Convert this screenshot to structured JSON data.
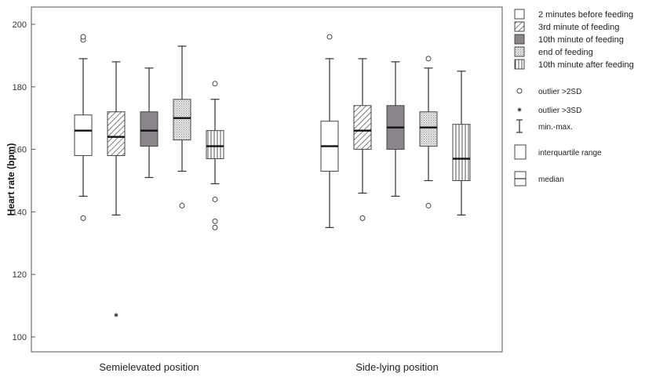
{
  "chart_data": {
    "type": "box",
    "ylabel": "Heart rate (bpm)",
    "ylim": [
      95,
      205
    ],
    "yticks": [
      100,
      120,
      140,
      160,
      180,
      200
    ],
    "categories": [
      "Semielevated position",
      "Side-lying position"
    ],
    "series": [
      {
        "name": "2 minutes before feeding",
        "pattern": "plain",
        "boxes": [
          {
            "min": 145,
            "q1": 158,
            "median": 166,
            "q3": 171,
            "max": 189,
            "outliers": [
              195,
              196,
              138
            ],
            "extremes": []
          },
          {
            "min": 135,
            "q1": 153,
            "median": 161,
            "q3": 169,
            "max": 189,
            "outliers": [
              196
            ],
            "extremes": []
          }
        ]
      },
      {
        "name": "3rd minute of feeding",
        "pattern": "diag",
        "boxes": [
          {
            "min": 139,
            "q1": 158,
            "median": 164,
            "q3": 172,
            "max": 188,
            "outliers": [],
            "extremes": [
              107
            ]
          },
          {
            "min": 146,
            "q1": 160,
            "median": 166,
            "q3": 174,
            "max": 189,
            "outliers": [
              138
            ],
            "extremes": []
          }
        ]
      },
      {
        "name": "10th minute of feeding",
        "pattern": "dark",
        "boxes": [
          {
            "min": 151,
            "q1": 161,
            "median": 166,
            "q3": 172,
            "max": 186,
            "outliers": [],
            "extremes": []
          },
          {
            "min": 145,
            "q1": 160,
            "median": 167,
            "q3": 174,
            "max": 188,
            "outliers": [],
            "extremes": []
          }
        ]
      },
      {
        "name": "end of feeding",
        "pattern": "dots",
        "boxes": [
          {
            "min": 153,
            "q1": 163,
            "median": 170,
            "q3": 176,
            "max": 193,
            "outliers": [
              142
            ],
            "extremes": []
          },
          {
            "min": 150,
            "q1": 161,
            "median": 167,
            "q3": 172,
            "max": 186,
            "outliers": [
              189,
              142
            ],
            "extremes": []
          }
        ]
      },
      {
        "name": "10th minute after feeding",
        "pattern": "vlines",
        "boxes": [
          {
            "min": 149,
            "q1": 157,
            "median": 161,
            "q3": 166,
            "max": 176,
            "outliers": [
              181,
              144,
              137,
              135
            ],
            "extremes": []
          },
          {
            "min": 139,
            "q1": 150,
            "median": 157,
            "q3": 168,
            "max": 185,
            "outliers": [],
            "extremes": []
          }
        ]
      }
    ],
    "legend_position": "right",
    "legend_key": [
      {
        "symbol": "circle",
        "label": "outlier >2SD"
      },
      {
        "symbol": "star",
        "label": "outlier >3SD"
      },
      {
        "symbol": "whisker",
        "label": "min.-max."
      },
      {
        "symbol": "box",
        "label": "interquartile range"
      },
      {
        "symbol": "median",
        "label": "median"
      }
    ],
    "colors": {
      "frame": "#555555",
      "box_stroke": "#444444",
      "dark_fill": "#8a8588",
      "median": "#111111"
    }
  }
}
